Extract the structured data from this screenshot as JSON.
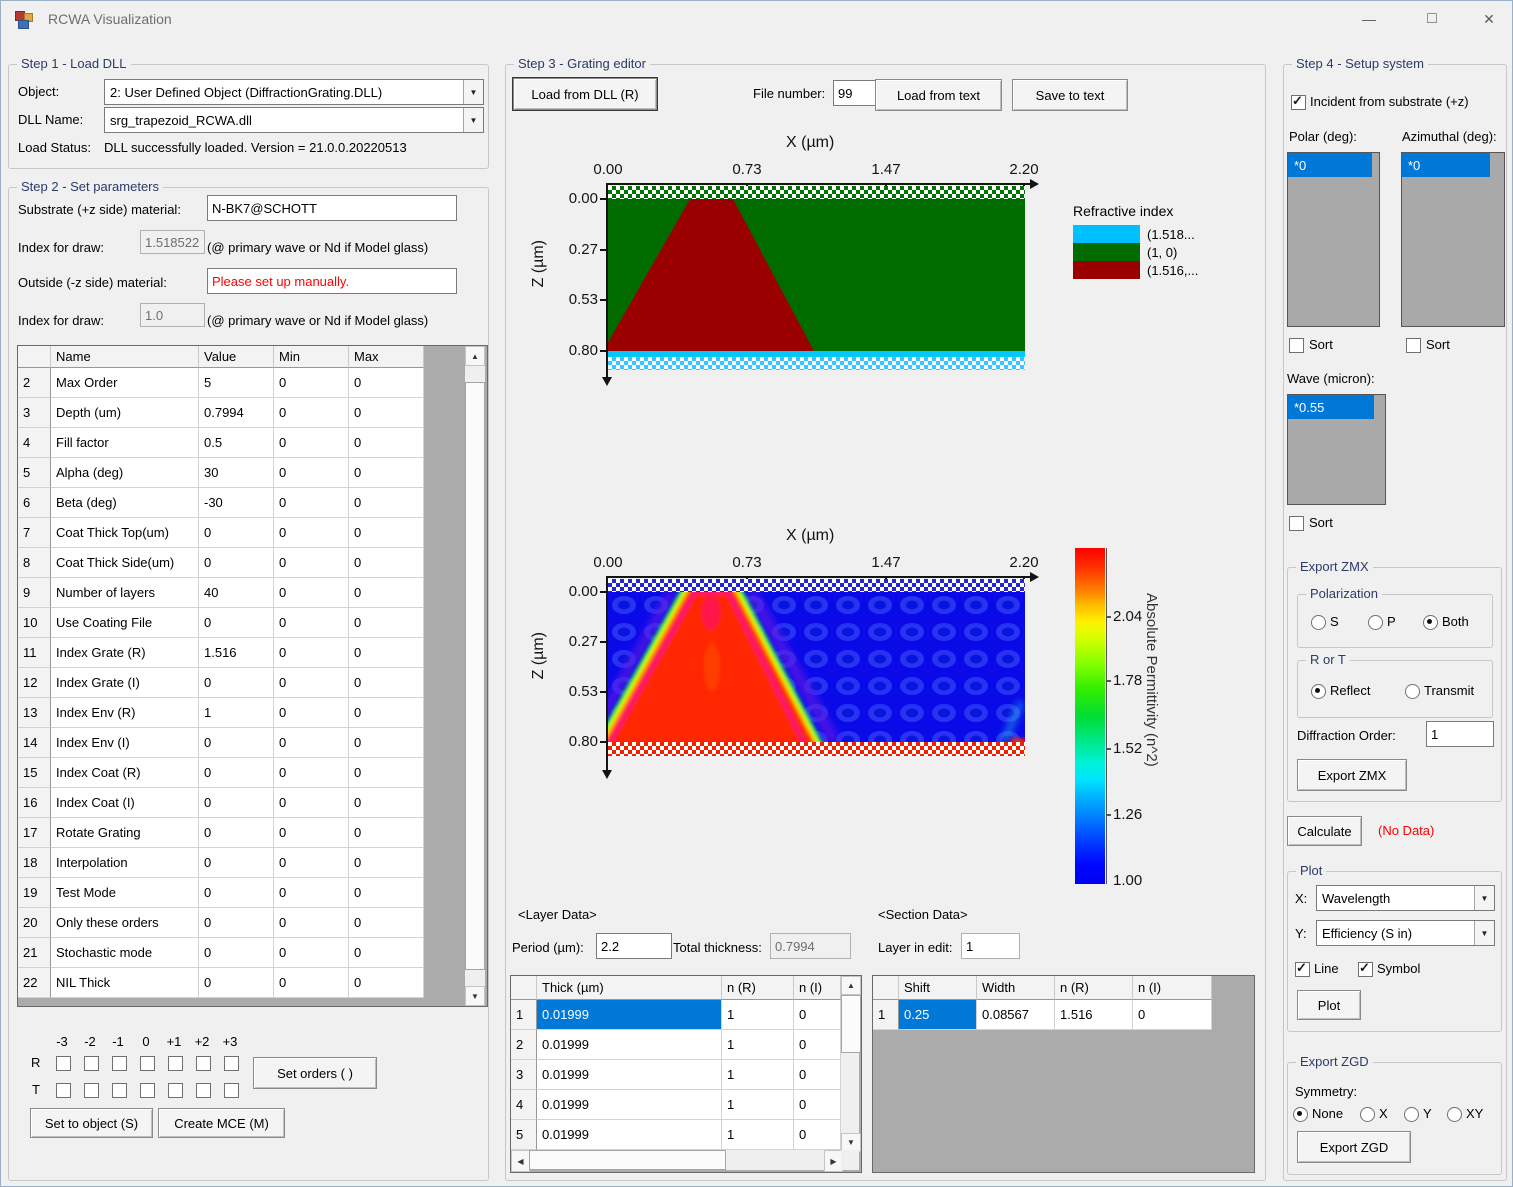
{
  "window": {
    "title": "RCWA Visualization",
    "minimize": "—",
    "maximize": "□",
    "close": "✕"
  },
  "icons": {
    "dropdown": "▼",
    "up": "▲",
    "down": "▼",
    "left": "◀",
    "right": "▶"
  },
  "step1": {
    "title": "Step 1 - Load DLL",
    "object_label": "Object:",
    "object_value": "2: User Defined Object (DiffractionGrating.DLL)",
    "dll_name_label": "DLL Name:",
    "dll_name_value": "srg_trapezoid_RCWA.dll",
    "load_status_label": "Load Status:",
    "load_status_value": "DLL successfully loaded. Version = 21.0.0.20220513"
  },
  "step2": {
    "title": "Step 2 - Set parameters",
    "substrate_label": "Substrate (+z side) material:",
    "substrate_value": "N-BK7@SCHOTT",
    "index_draw_label": "Index for draw:",
    "index_draw_substrate": "1.518522",
    "index_note": "(@ primary wave or Nd if Model glass)",
    "outside_label": "Outside (-z side) material:",
    "outside_value": "Please set up manually.",
    "index_draw_outside": "1.0",
    "grid": {
      "headers": [
        "",
        "Name",
        "Value",
        "Min",
        "Max"
      ],
      "rows": [
        [
          "2",
          "Max Order",
          "5",
          "0",
          "0"
        ],
        [
          "3",
          "Depth (um)",
          "0.7994",
          "0",
          "0"
        ],
        [
          "4",
          "Fill factor",
          "0.5",
          "0",
          "0"
        ],
        [
          "5",
          "Alpha (deg)",
          "30",
          "0",
          "0"
        ],
        [
          "6",
          "Beta (deg)",
          "-30",
          "0",
          "0"
        ],
        [
          "7",
          "Coat Thick Top(um)",
          "0",
          "0",
          "0"
        ],
        [
          "8",
          "Coat Thick Side(um)",
          "0",
          "0",
          "0"
        ],
        [
          "9",
          "Number of layers",
          "40",
          "0",
          "0"
        ],
        [
          "10",
          "Use Coating File",
          "0",
          "0",
          "0"
        ],
        [
          "11",
          "Index Grate (R)",
          "1.516",
          "0",
          "0"
        ],
        [
          "12",
          "Index Grate (I)",
          "0",
          "0",
          "0"
        ],
        [
          "13",
          "Index Env (R)",
          "1",
          "0",
          "0"
        ],
        [
          "14",
          "Index Env (I)",
          "0",
          "0",
          "0"
        ],
        [
          "15",
          "Index Coat (R)",
          "0",
          "0",
          "0"
        ],
        [
          "16",
          "Index Coat (I)",
          "0",
          "0",
          "0"
        ],
        [
          "17",
          "Rotate Grating",
          "0",
          "0",
          "0"
        ],
        [
          "18",
          "Interpolation",
          "0",
          "0",
          "0"
        ],
        [
          "19",
          "Test Mode",
          "0",
          "0",
          "0"
        ],
        [
          "20",
          "Only these orders",
          "0",
          "0",
          "0"
        ],
        [
          "21",
          "Stochastic mode",
          "0",
          "0",
          "0"
        ],
        [
          "22",
          "NIL Thick",
          "0",
          "0",
          "0"
        ]
      ]
    },
    "orders": {
      "labels": [
        "-3",
        "-2",
        "-1",
        "0",
        "+1",
        "+2",
        "+3"
      ],
      "r_label": "R",
      "t_label": "T",
      "set_orders_button": "Set orders ( )"
    },
    "set_to_object_button": "Set to object (S)",
    "create_mce_button": "Create MCE (M)"
  },
  "step3": {
    "title": "Step 3 - Grating editor",
    "load_dll_button": "Load from DLL (R)",
    "file_number_label": "File number:",
    "file_number_value": "99",
    "load_text_button": "Load from text",
    "save_text_button": "Save to text",
    "plot1": {
      "xlabel": "X (µm)",
      "ylabel": "Z (µm)",
      "x_ticks": [
        "0.00",
        "0.73",
        "1.47",
        "2.20"
      ],
      "z_ticks": [
        "0.00",
        "0.27",
        "0.53",
        "0.80"
      ],
      "legend_title": "Refractive index",
      "legend": [
        {
          "color": "#00c0ff",
          "label": "(1.518..."
        },
        {
          "color": "#006c00",
          "label": "(1, 0)"
        },
        {
          "color": "#9b0000",
          "label": "(1.516,..."
        }
      ]
    },
    "plot2": {
      "xlabel": "X (µm)",
      "ylabel": "Z (µm)",
      "x_ticks": [
        "0.00",
        "0.73",
        "1.47",
        "2.20"
      ],
      "z_ticks": [
        "0.00",
        "0.27",
        "0.53",
        "0.80"
      ],
      "colorbar_label": "Absolute Permittivity (n^2)",
      "colorbar_ticks": [
        "2.04",
        "1.78",
        "1.52",
        "1.26",
        "1.00"
      ]
    },
    "layer_data_label": "<Layer Data>",
    "period_label": "Period (µm):",
    "period_value": "2.2",
    "total_thickness_label": "Total thickness:",
    "total_thickness_value": "0.7994",
    "layer_table": {
      "headers": [
        "",
        "Thick (µm)",
        "n (R)",
        "n (I)"
      ],
      "rows": [
        [
          "1",
          "0.01999",
          "1",
          "0"
        ],
        [
          "2",
          "0.01999",
          "1",
          "0"
        ],
        [
          "3",
          "0.01999",
          "1",
          "0"
        ],
        [
          "4",
          "0.01999",
          "1",
          "0"
        ],
        [
          "5",
          "0.01999",
          "1",
          "0"
        ]
      ]
    },
    "section_data_label": "<Section Data>",
    "layer_in_edit_label": "Layer in edit:",
    "layer_in_edit_value": "1",
    "section_table": {
      "headers": [
        "",
        "Shift",
        "Width",
        "n (R)",
        "n (I)"
      ],
      "rows": [
        [
          "1",
          "0.25",
          "0.08567",
          "1.516",
          "0"
        ]
      ]
    }
  },
  "step4": {
    "title": "Step 4 - Setup system",
    "incident_label": "Incident from substrate (+z)",
    "polar_label": "Polar (deg):",
    "polar_items": [
      "*0"
    ],
    "azimuthal_label": "Azimuthal (deg):",
    "azimuthal_items": [
      "*0"
    ],
    "sort_label": "Sort",
    "wave_label": "Wave (micron):",
    "wave_items": [
      "*0.55"
    ],
    "export_zmx": {
      "title": "Export ZMX",
      "polarization_title": "Polarization",
      "pol_options": [
        "S",
        "P",
        "Both"
      ],
      "pol_selected": "Both",
      "rt_title": "R or T",
      "rt_options": [
        "Reflect",
        "Transmit"
      ],
      "rt_selected": "Reflect",
      "diffraction_label": "Diffraction Order:",
      "diffraction_value": "1",
      "export_button": "Export ZMX"
    },
    "calculate_button": "Calculate",
    "no_data_label": "(No Data)",
    "plot_group": {
      "title": "Plot",
      "x_label": "X:",
      "x_value": "Wavelength",
      "y_label": "Y:",
      "y_value": "Efficiency (S in)",
      "line_label": "Line",
      "symbol_label": "Symbol",
      "plot_button": "Plot"
    },
    "export_zgd": {
      "title": "Export ZGD",
      "symmetry_label": "Symmetry:",
      "options": [
        "None",
        "X",
        "Y",
        "XY"
      ],
      "selected": "None",
      "export_button": "Export ZGD"
    }
  },
  "chart_data": [
    {
      "type": "heatmap",
      "title": "Refractive index map",
      "xlabel": "X (µm)",
      "ylabel": "Z (µm)",
      "x_ticks": [
        0.0,
        0.73,
        1.47,
        2.2
      ],
      "z_ticks": [
        0.0,
        0.27,
        0.53,
        0.8
      ],
      "x_range": [
        0,
        2.2
      ],
      "z_range": [
        0,
        0.8
      ],
      "legend_position": "right",
      "legend": [
        {
          "value": "(1.518...",
          "color": "#00c0ff",
          "region": "substrate hatched band below z=0.80"
        },
        {
          "value": "(1, 0)",
          "color": "#006c00",
          "region": "environment"
        },
        {
          "value": "(1.516,...",
          "color": "#9b0000",
          "region": "grating trapezoid"
        }
      ],
      "trapezoid_um": {
        "top_x": [
          0.43,
          0.66
        ],
        "bottom_x": [
          0.0,
          1.08
        ],
        "z_top": 0.0,
        "z_bottom": 0.7994
      }
    },
    {
      "type": "heatmap",
      "title": "Absolute permittivity map (Fourier reconstruction)",
      "xlabel": "X (µm)",
      "ylabel": "Z (µm)",
      "x_ticks": [
        0.0,
        0.73,
        1.47,
        2.2
      ],
      "z_ticks": [
        0.0,
        0.27,
        0.53,
        0.8
      ],
      "colorbar": {
        "label": "Absolute Permittivity (n^2)",
        "ticks": [
          2.04,
          1.78,
          1.52,
          1.26,
          1.0
        ],
        "range": [
          1.0,
          2.31
        ]
      },
      "content": "blue background (~1.0) with red trapezoid (~2.3) and rainbow transition edges"
    }
  ]
}
